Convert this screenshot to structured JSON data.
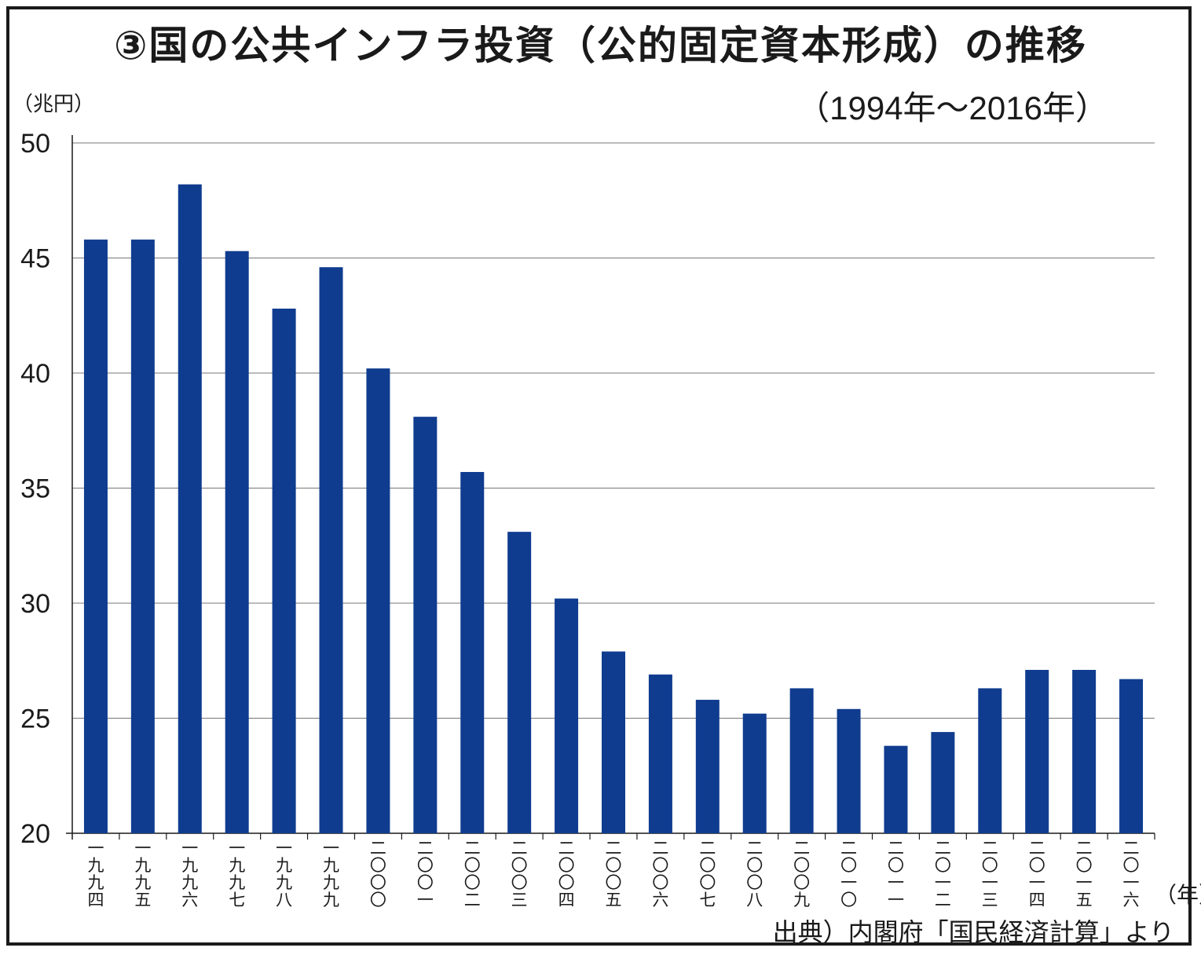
{
  "chart_data": {
    "type": "bar",
    "title": "③国の公共インフラ投資（公的固定資本形成）の推移",
    "subtitle": "（1994年～2016年）",
    "ylabel": "（兆円）",
    "xlabel": "（年）",
    "source": "出典）内閣府「国民経済計算」より",
    "ylim": [
      20,
      50
    ],
    "yticks": [
      20,
      25,
      30,
      35,
      40,
      45,
      50
    ],
    "grid": true,
    "bar_color": "#0f3c8f",
    "categories": [
      "一九九四",
      "一九九五",
      "一九九六",
      "一九九七",
      "一九九八",
      "一九九九",
      "二〇〇〇",
      "二〇〇一",
      "二〇〇二",
      "二〇〇三",
      "二〇〇四",
      "二〇〇五",
      "二〇〇六",
      "二〇〇七",
      "二〇〇八",
      "二〇〇九",
      "二〇一〇",
      "二〇一一",
      "二〇一二",
      "二〇一三",
      "二〇一四",
      "二〇一五",
      "二〇一六"
    ],
    "values": [
      45.8,
      45.8,
      48.2,
      45.3,
      42.8,
      44.6,
      40.2,
      38.1,
      35.7,
      33.1,
      30.2,
      27.9,
      26.9,
      25.8,
      25.2,
      26.3,
      25.4,
      23.8,
      24.4,
      26.3,
      27.1,
      27.1,
      26.7
    ]
  }
}
